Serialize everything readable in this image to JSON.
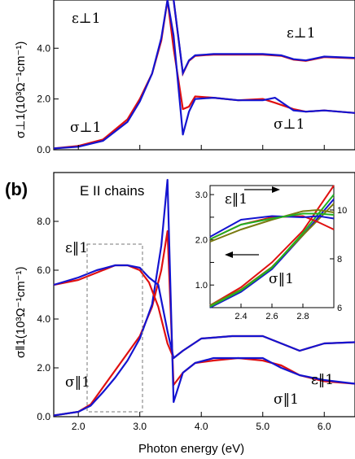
{
  "chart_data": [
    {
      "panel": "a",
      "type": "line",
      "title": "",
      "xlim": [
        1.6,
        6.5
      ],
      "ylim": [
        0,
        5.9
      ],
      "yticks": [
        "0.0",
        "2.0",
        "4.0"
      ],
      "ylabel": "σ⊥1(10³Ω⁻¹cm⁻¹)",
      "labels": [
        "ε⊥1",
        "ε⊥1",
        "σ⊥1",
        "σ⊥1"
      ],
      "series": [
        {
          "color": "#e01010",
          "x": [
            1.6,
            2.0,
            2.4,
            2.8,
            3.0,
            3.2,
            3.35,
            3.45,
            3.55,
            3.7,
            3.8,
            3.9,
            4.2,
            4.6,
            5.0,
            5.2,
            5.5,
            5.7,
            6.0,
            6.5
          ],
          "y": [
            0.05,
            0.15,
            0.4,
            1.2,
            2.0,
            3.0,
            4.3,
            5.9,
            4.0,
            1.6,
            1.7,
            2.1,
            2.05,
            1.95,
            2.0,
            1.85,
            1.6,
            1.5,
            1.55,
            1.45
          ]
        },
        {
          "color": "#1414d0",
          "x": [
            1.6,
            2.0,
            2.4,
            2.8,
            3.0,
            3.2,
            3.35,
            3.45,
            3.55,
            3.7,
            3.8,
            3.9,
            4.2,
            4.6,
            5.0,
            5.2,
            5.5,
            5.7,
            6.0,
            6.5
          ],
          "y": [
            0.05,
            0.12,
            0.35,
            1.1,
            1.9,
            3.0,
            4.4,
            5.9,
            4.5,
            0.6,
            1.5,
            2.0,
            2.05,
            1.95,
            1.95,
            2.05,
            1.55,
            1.5,
            1.55,
            1.45
          ]
        }
      ]
    },
    {
      "panel": "b",
      "type": "line",
      "title": "E II chains",
      "xlim": [
        1.6,
        6.5
      ],
      "ylim": [
        0,
        10
      ],
      "xticks": [
        "2.0",
        "3.0",
        "4.0",
        "5.0",
        "6.0"
      ],
      "yticks": [
        "0.0",
        "2.0",
        "4.0",
        "6.0",
        "8.0"
      ],
      "xlabel": "Photon energy (eV)",
      "ylabel": "σ‖1(10³Ω⁻¹cm⁻¹)",
      "labels": [
        "ε‖1",
        "σ‖1",
        "ε‖1",
        "σ‖1"
      ],
      "series": [
        {
          "color": "#e01010",
          "name": "sigma-red",
          "x": [
            1.6,
            2.0,
            2.2,
            2.4,
            2.6,
            2.8,
            3.0,
            3.2,
            3.35,
            3.45,
            3.55,
            3.7,
            3.9,
            4.2,
            4.6,
            5.0,
            5.3,
            5.6,
            6.0,
            6.5
          ],
          "y": [
            0.05,
            0.2,
            0.5,
            1.2,
            1.9,
            2.6,
            3.3,
            4.5,
            6.0,
            7.6,
            1.3,
            1.8,
            2.2,
            2.3,
            2.4,
            2.3,
            2.1,
            1.7,
            1.45,
            1.35
          ]
        },
        {
          "color": "#1414d0",
          "name": "sigma-blue",
          "x": [
            1.6,
            2.0,
            2.2,
            2.4,
            2.6,
            2.8,
            3.0,
            3.2,
            3.35,
            3.45,
            3.55,
            3.7,
            3.9,
            4.2,
            4.6,
            5.0,
            5.3,
            5.6,
            6.0,
            6.5
          ],
          "y": [
            0.05,
            0.2,
            0.45,
            1.0,
            1.6,
            2.3,
            3.2,
            4.6,
            7.0,
            9.7,
            0.6,
            1.8,
            2.2,
            2.4,
            2.4,
            2.4,
            2.0,
            1.7,
            1.5,
            1.35
          ]
        },
        {
          "color": "#e01010",
          "name": "eps-red",
          "x": [
            1.6,
            2.0,
            2.3,
            2.6,
            2.8,
            3.0,
            3.15,
            3.3,
            3.45,
            3.55,
            3.7,
            4.0,
            4.5,
            5.0,
            5.3,
            5.6,
            6.0,
            6.5
          ],
          "y": [
            5.4,
            5.6,
            5.9,
            6.2,
            6.2,
            6.0,
            5.5,
            4.5,
            3.0,
            2.4,
            2.7,
            3.2,
            3.3,
            3.3,
            3.0,
            2.7,
            3.0,
            3.05
          ]
        },
        {
          "color": "#1414d0",
          "name": "eps-blue",
          "x": [
            1.6,
            2.0,
            2.3,
            2.6,
            2.8,
            3.0,
            3.15,
            3.3,
            3.45,
            3.55,
            3.7,
            4.0,
            4.5,
            5.0,
            5.3,
            5.6,
            6.0,
            6.5
          ],
          "y": [
            5.4,
            5.7,
            6.0,
            6.2,
            6.2,
            6.1,
            5.7,
            5.4,
            3.5,
            2.4,
            2.7,
            3.2,
            3.3,
            3.3,
            3.0,
            2.7,
            3.0,
            3.05
          ]
        }
      ],
      "inset": {
        "xlim": [
          2.2,
          3.0
        ],
        "ylim_left": [
          0.5,
          3.2
        ],
        "ylim_right": [
          6,
          11
        ],
        "xticks": [
          "2.4",
          "2.6",
          "2.8"
        ],
        "yticks_left": [
          "1.0",
          "1.5",
          "2.0",
          "2.5",
          "3.0"
        ],
        "yticks_right": [
          "6",
          "8",
          "10"
        ],
        "labels": [
          "ε‖1",
          "σ‖1"
        ]
      }
    }
  ]
}
